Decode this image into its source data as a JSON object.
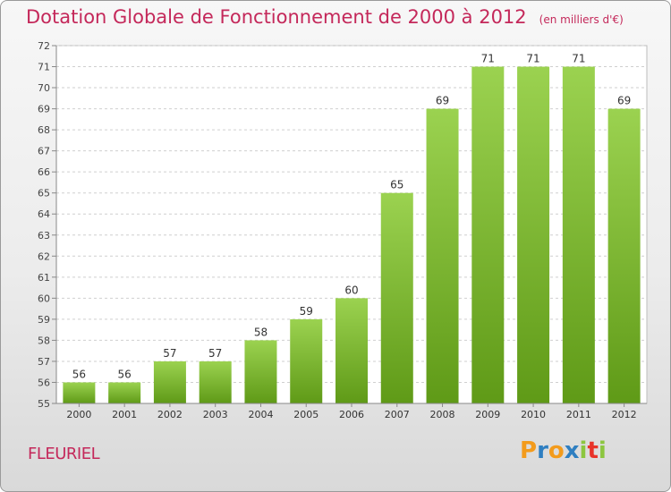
{
  "chart_data": {
    "type": "bar",
    "title": "Dotation Globale de Fonctionnement de 2000 à 2012",
    "unit": "(en milliers d'€)",
    "categories": [
      "2000",
      "2001",
      "2002",
      "2003",
      "2004",
      "2005",
      "2006",
      "2007",
      "2008",
      "2009",
      "2010",
      "2011",
      "2012"
    ],
    "values": [
      56,
      56,
      57,
      57,
      58,
      59,
      60,
      65,
      69,
      71,
      71,
      71,
      69
    ],
    "ylim": [
      55,
      72
    ],
    "yticks": [
      55,
      56,
      57,
      58,
      59,
      60,
      61,
      62,
      63,
      64,
      65,
      66,
      67,
      68,
      69,
      70,
      71,
      72
    ],
    "xlabel": "",
    "ylabel": "",
    "grid": true,
    "bar_color": "#7ab62e"
  },
  "commune": "FLEURIEL",
  "brand": {
    "letters": [
      "P",
      "r",
      "o",
      "x",
      "i",
      "t",
      "i"
    ],
    "colors": [
      "#f39b1c",
      "#2f7fc1",
      "#f39b1c",
      "#2f7fc1",
      "#8cc63f",
      "#e8332a",
      "#8cc63f"
    ]
  }
}
